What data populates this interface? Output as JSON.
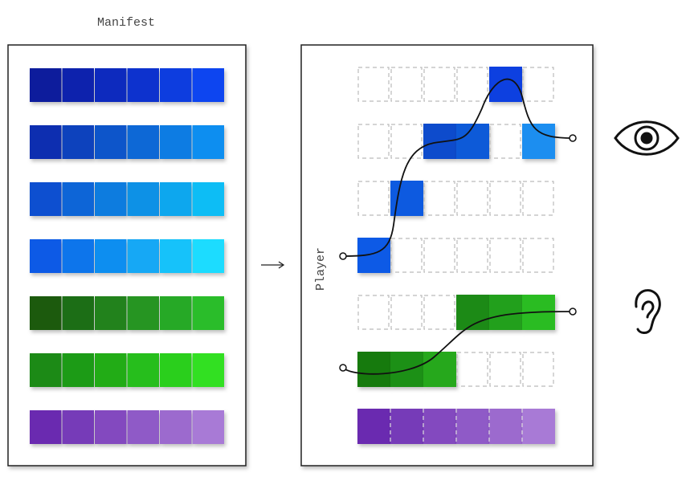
{
  "labels": {
    "manifest": "Manifest",
    "player": "Player"
  }
}
